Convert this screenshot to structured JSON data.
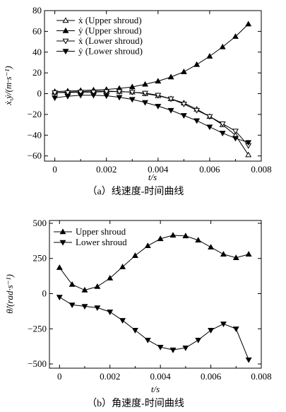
{
  "chart_data": [
    {
      "type": "line",
      "caption": "（a）线速度-时间曲线",
      "xlabel": "t/s",
      "ylabel": "ẋ,ẏ/(m·s⁻¹)",
      "xlim": [
        -0.0004,
        0.008
      ],
      "ylim": [
        -65,
        80
      ],
      "xticks": [
        0,
        0.002,
        0.004,
        0.006,
        0.008
      ],
      "xtick_labels": [
        "0",
        "0.002",
        "0.004",
        "0.006",
        "0.008"
      ],
      "yticks": [
        -60,
        -40,
        -20,
        0,
        20,
        40,
        60,
        80
      ],
      "ytick_labels": [
        "−60",
        "−40",
        "−20",
        "0",
        "20",
        "40",
        "60",
        "80"
      ],
      "legend_position": "top-left",
      "x": [
        0,
        0.0005,
        0.001,
        0.0015,
        0.002,
        0.0025,
        0.003,
        0.0035,
        0.004,
        0.0045,
        0.005,
        0.0055,
        0.006,
        0.0065,
        0.007,
        0.0075
      ],
      "series": [
        {
          "name": "ẋ (Upper shroud)",
          "marker": "triangle-up-open",
          "values": [
            1,
            1.5,
            2,
            2.5,
            2.5,
            2,
            1.5,
            0,
            -2,
            -5,
            -9,
            -15,
            -22,
            -30,
            -40,
            -59
          ]
        },
        {
          "name": "ẏ (Upper shroud)",
          "marker": "triangle-up-filled",
          "values": [
            2,
            2.5,
            3,
            3.5,
            4,
            5,
            6.5,
            9,
            12,
            16,
            21,
            28,
            36,
            45,
            55,
            67
          ]
        },
        {
          "name": "ẋ (Lower shroud)",
          "marker": "triangle-down-open",
          "values": [
            1,
            1,
            1.5,
            1.5,
            2,
            2,
            1.5,
            0.5,
            -1.5,
            -5,
            -10,
            -16,
            -22,
            -29,
            -36,
            -50
          ]
        },
        {
          "name": "ẏ (Lower shroud)",
          "marker": "triangle-down-filled",
          "values": [
            -4,
            -2.5,
            -1.5,
            -1.5,
            -2,
            -3.5,
            -5.5,
            -8.5,
            -12,
            -16,
            -21,
            -26,
            -32,
            -38,
            -43,
            -47
          ]
        }
      ]
    },
    {
      "type": "line",
      "caption": "（b）角速度-时间曲线",
      "xlabel": "t/s",
      "ylabel": "θ̇/(rad·s⁻¹)",
      "xlim": [
        -0.0004,
        0.008
      ],
      "ylim": [
        -530,
        520
      ],
      "xticks": [
        0,
        0.002,
        0.004,
        0.006,
        0.008
      ],
      "xtick_labels": [
        "0",
        "0.002",
        "0.004",
        "0.006",
        "0.008"
      ],
      "yticks": [
        -500,
        -250,
        0,
        250,
        500
      ],
      "ytick_labels": [
        "−500",
        "−250",
        "0",
        "250",
        "500"
      ],
      "legend_position": "top-left",
      "x": [
        0,
        0.0005,
        0.001,
        0.0015,
        0.002,
        0.0025,
        0.003,
        0.0035,
        0.004,
        0.0045,
        0.005,
        0.0055,
        0.006,
        0.0065,
        0.007,
        0.0075
      ],
      "series": [
        {
          "name": "Upper shroud",
          "marker": "triangle-up-filled",
          "values": [
            185,
            65,
            25,
            50,
            110,
            190,
            270,
            340,
            390,
            415,
            410,
            380,
            330,
            280,
            255,
            280
          ]
        },
        {
          "name": "Lower shroud",
          "marker": "triangle-down-filled",
          "values": [
            -25,
            -80,
            -90,
            -100,
            -130,
            -190,
            -260,
            -330,
            -380,
            -400,
            -385,
            -330,
            -260,
            -215,
            -250,
            -470
          ]
        }
      ]
    }
  ]
}
